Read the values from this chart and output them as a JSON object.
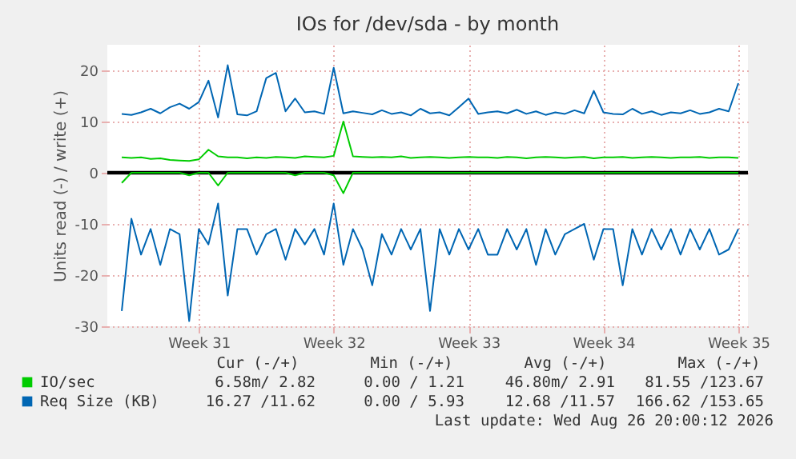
{
  "chart_data": {
    "type": "line",
    "title": "IOs for /dev/sda - by month",
    "ylabel": "Units read (-) / write (+)",
    "x": [
      "2026-07-25T12:00",
      "2026-07-26T00:00",
      "2026-07-26T12:00",
      "2026-07-27T00:00",
      "2026-07-27T12:00",
      "2026-07-28T00:00",
      "2026-07-28T12:00",
      "2026-07-29T00:00",
      "2026-07-29T12:00",
      "2026-07-30T00:00",
      "2026-07-30T12:00",
      "2026-07-31T00:00",
      "2026-07-31T12:00",
      "2026-08-01T00:00",
      "2026-08-01T12:00",
      "2026-08-02T00:00",
      "2026-08-02T12:00",
      "2026-08-03T00:00",
      "2026-08-03T12:00",
      "2026-08-04T00:00",
      "2026-08-04T12:00",
      "2026-08-05T00:00",
      "2026-08-05T12:00",
      "2026-08-06T00:00",
      "2026-08-06T12:00",
      "2026-08-07T00:00",
      "2026-08-07T12:00",
      "2026-08-08T00:00",
      "2026-08-08T12:00",
      "2026-08-09T00:00",
      "2026-08-09T12:00",
      "2026-08-10T00:00",
      "2026-08-10T12:00",
      "2026-08-11T00:00",
      "2026-08-11T12:00",
      "2026-08-12T00:00",
      "2026-08-12T12:00",
      "2026-08-13T00:00",
      "2026-08-13T12:00",
      "2026-08-14T00:00",
      "2026-08-14T12:00",
      "2026-08-15T00:00",
      "2026-08-15T12:00",
      "2026-08-16T00:00",
      "2026-08-16T12:00",
      "2026-08-17T00:00",
      "2026-08-17T12:00",
      "2026-08-18T00:00",
      "2026-08-18T12:00",
      "2026-08-19T00:00",
      "2026-08-19T12:00",
      "2026-08-20T00:00",
      "2026-08-20T12:00",
      "2026-08-21T00:00",
      "2026-08-21T12:00",
      "2026-08-22T00:00",
      "2026-08-22T12:00",
      "2026-08-23T00:00",
      "2026-08-23T12:00",
      "2026-08-24T00:00",
      "2026-08-24T12:00",
      "2026-08-25T00:00",
      "2026-08-25T12:00",
      "2026-08-26T00:00",
      "2026-08-26T12:00"
    ],
    "xlim": [
      "2026-07-24T18:00",
      "2026-08-27T00:00"
    ],
    "xticks": [
      {
        "value": "2026-07-29T12:00",
        "label": "Week 31"
      },
      {
        "value": "2026-08-05T12:00",
        "label": "Week 32"
      },
      {
        "value": "2026-08-12T12:00",
        "label": "Week 33"
      },
      {
        "value": "2026-08-19T12:00",
        "label": "Week 34"
      },
      {
        "value": "2026-08-26T12:00",
        "label": "Week 35"
      }
    ],
    "ylim": [
      -30,
      25
    ],
    "yticks": [
      -30,
      -20,
      -10,
      0,
      10,
      20
    ],
    "grid": true,
    "legend": "bottom",
    "marker": "none",
    "line_style": "solid",
    "series": [
      {
        "name": "IO/sec",
        "color": "#00cc00",
        "values": [
          3.0,
          2.9,
          3.0,
          2.7,
          2.8,
          2.5,
          2.4,
          2.3,
          2.6,
          4.5,
          3.2,
          3.0,
          3.0,
          2.8,
          3.0,
          2.9,
          3.1,
          3.0,
          2.9,
          3.2,
          3.1,
          3.0,
          3.3,
          10.0,
          3.2,
          3.1,
          3.0,
          3.1,
          3.0,
          3.2,
          2.9,
          3.0,
          3.1,
          3.0,
          2.9,
          3.0,
          3.1,
          3.0,
          3.0,
          2.9,
          3.1,
          3.0,
          2.8,
          3.0,
          3.1,
          3.0,
          2.9,
          3.0,
          3.1,
          2.8,
          3.0,
          3.0,
          3.1,
          2.9,
          3.0,
          3.1,
          3.0,
          2.9,
          3.0,
          3.0,
          3.1,
          2.9,
          3.0,
          3.0,
          2.9
        ]
      },
      {
        "color": "#00cc00",
        "values": [
          -2.0,
          0,
          0,
          0,
          0,
          0,
          0,
          -0.5,
          0,
          0,
          -2.5,
          0,
          0,
          0,
          0,
          0,
          0,
          0,
          -0.5,
          0,
          0,
          0,
          -0.5,
          -4.0,
          0,
          0,
          0,
          0,
          0,
          0,
          0,
          0,
          0,
          0,
          0,
          0,
          0,
          0,
          0,
          0,
          0,
          0,
          0,
          0,
          0,
          0,
          0,
          0,
          0,
          0,
          0,
          0,
          0,
          0,
          0,
          0,
          0,
          0,
          0,
          0,
          0,
          0,
          0,
          0,
          0
        ]
      },
      {
        "name": "Req Size (KB)",
        "color": "#0066b3",
        "values": [
          11.5,
          11.3,
          11.8,
          12.5,
          11.6,
          12.8,
          13.5,
          12.5,
          13.8,
          18.0,
          10.8,
          21.0,
          11.4,
          11.2,
          12.0,
          18.5,
          19.5,
          12.0,
          14.5,
          11.8,
          12.0,
          11.5,
          20.5,
          11.6,
          12.0,
          11.7,
          11.4,
          12.2,
          11.5,
          11.8,
          11.2,
          12.5,
          11.6,
          11.8,
          11.2,
          12.8,
          14.5,
          11.5,
          11.8,
          12.0,
          11.6,
          12.3,
          11.5,
          12.0,
          11.3,
          11.8,
          11.5,
          12.2,
          11.6,
          16.0,
          11.8,
          11.5,
          11.4,
          12.5,
          11.5,
          12.0,
          11.3,
          11.8,
          11.6,
          12.2,
          11.5,
          11.8,
          12.5,
          12.0,
          17.5
        ]
      },
      {
        "color": "#0066b3",
        "values": [
          -27,
          -9,
          -16,
          -11,
          -18,
          -11,
          -12,
          -29,
          -11,
          -14,
          -6,
          -24,
          -11,
          -11,
          -16,
          -12,
          -11,
          -17,
          -11,
          -14,
          -11,
          -16,
          -6,
          -18,
          -11,
          -15,
          -22,
          -12,
          -16,
          -11,
          -15,
          -11,
          -27,
          -11,
          -16,
          -11,
          -15,
          -11,
          -16,
          -16,
          -11,
          -15,
          -11,
          -18,
          -11,
          -16,
          -12,
          -11,
          -10,
          -17,
          -11,
          -11,
          -22,
          -11,
          -16,
          -11,
          -15,
          -11,
          -16,
          -11,
          -15,
          -11,
          -16,
          -15,
          -11
        ]
      }
    ],
    "ref_lines": [
      {
        "axis": "y",
        "value": 0,
        "color": "#000000"
      }
    ],
    "annotations": [
      "Cur (-/+)",
      "Min (-/+)",
      "Avg (-/+)",
      "Max (-/+)",
      "6.58m/ 2.82",
      "0.00 / 1.21",
      "46.80m/ 2.91",
      "81.55 /123.67",
      "16.27 /11.62",
      "0.00 / 5.93",
      "12.68 /11.57",
      "166.62 /153.65",
      "Last update: Wed Aug 26 20:00:12 2026"
    ]
  }
}
